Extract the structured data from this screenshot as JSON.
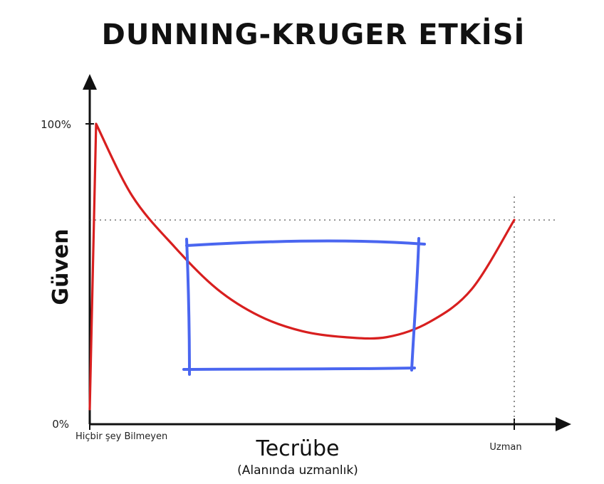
{
  "colors": {
    "axis": "#111111",
    "curve": "#d81f1f",
    "highlight": "#4a66f0",
    "reference": "#444444"
  },
  "chart_data": {
    "type": "line",
    "title": "DUNNING-KRUGER ETKİSİ",
    "ylabel": "Güven",
    "xlabel": "Tecrübe",
    "xlabel_sub": "(Alanında uzmanlık)",
    "y_ticks": [
      "0%",
      "100%"
    ],
    "x_ticks": [
      "Hiçbir şey Bilmeyen",
      "Uzman"
    ],
    "xlim": [
      0,
      100
    ],
    "ylim": [
      0,
      100
    ],
    "grid": false,
    "series": [
      {
        "x": [
          0,
          1.5,
          10,
          20,
          30,
          40,
          50,
          60,
          70,
          80,
          90,
          100
        ],
        "y": [
          5,
          100,
          76,
          59,
          45,
          36,
          31,
          29,
          29,
          34,
          45,
          68
        ]
      }
    ],
    "reference_lines": {
      "y": 68,
      "x": 100
    }
  }
}
